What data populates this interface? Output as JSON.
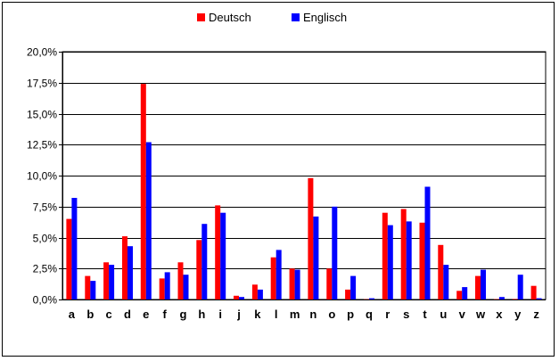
{
  "chart_data": {
    "type": "bar",
    "title": "",
    "xlabel": "",
    "ylabel": "",
    "categories": [
      "a",
      "b",
      "c",
      "d",
      "e",
      "f",
      "g",
      "h",
      "i",
      "j",
      "k",
      "l",
      "m",
      "n",
      "o",
      "p",
      "q",
      "r",
      "s",
      "t",
      "u",
      "v",
      "w",
      "x",
      "y",
      "z"
    ],
    "series": [
      {
        "name": "Deutsch",
        "color": "#ff0000",
        "values": [
          6.5,
          1.9,
          3.0,
          5.1,
          17.4,
          1.7,
          3.0,
          4.8,
          7.6,
          0.3,
          1.2,
          3.4,
          2.5,
          9.8,
          2.5,
          0.8,
          0.02,
          7.0,
          7.3,
          6.2,
          4.4,
          0.7,
          1.9,
          0.03,
          0.04,
          1.1
        ]
      },
      {
        "name": "Englisch",
        "color": "#0000ff",
        "values": [
          8.2,
          1.5,
          2.8,
          4.3,
          12.7,
          2.2,
          2.0,
          6.1,
          7.0,
          0.2,
          0.8,
          4.0,
          2.4,
          6.7,
          7.5,
          1.9,
          0.1,
          6.0,
          6.3,
          9.1,
          2.8,
          1.0,
          2.4,
          0.2,
          2.0,
          0.1
        ]
      }
    ],
    "ylim": [
      0,
      20
    ],
    "yticks": [
      0,
      2.5,
      5,
      7.5,
      10,
      12.5,
      15,
      17.5,
      20
    ],
    "ytick_labels": [
      "0,0%",
      "2,5%",
      "5,0%",
      "7,5%",
      "10,0%",
      "12,5%",
      "15,0%",
      "17,5%",
      "20,0%"
    ],
    "grid": true,
    "legend_position": "top-center"
  }
}
